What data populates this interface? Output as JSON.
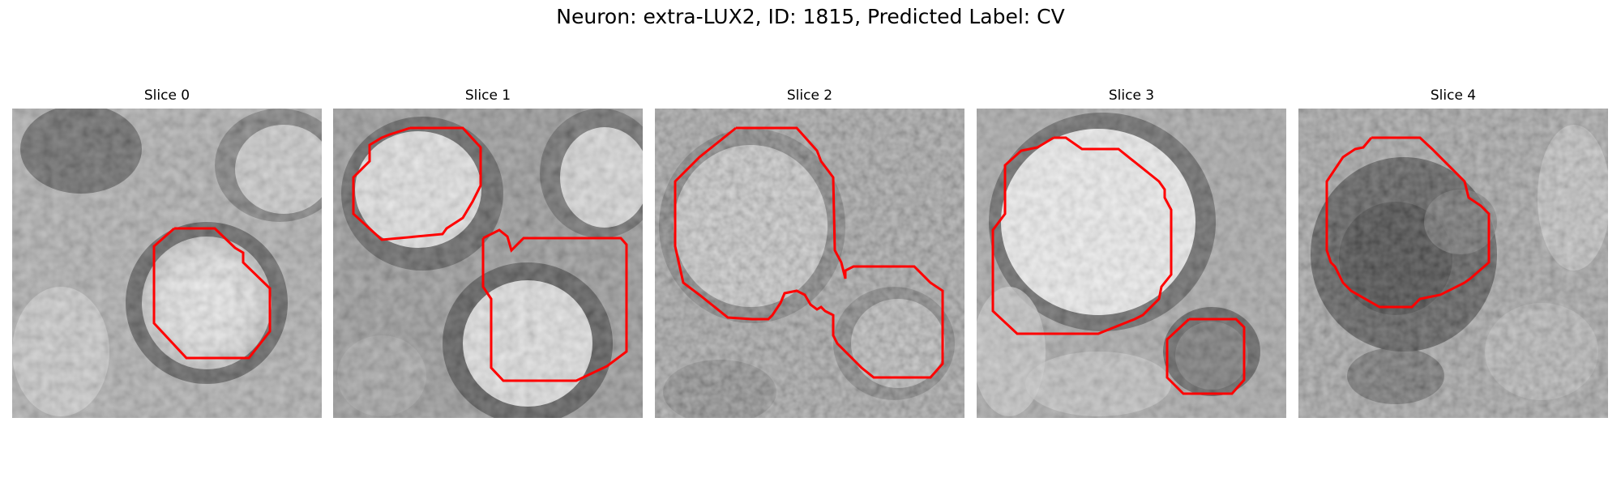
{
  "figure": {
    "title": "Neuron: extra-LUX2, ID: 1815, Predicted Label: CV"
  },
  "colors": {
    "contour": "#ff0000",
    "background": "#ffffff"
  },
  "slices": [
    {
      "label": "Slice 0"
    },
    {
      "label": "Slice 1"
    },
    {
      "label": "Slice 2"
    },
    {
      "label": "Slice 3"
    },
    {
      "label": "Slice 4"
    }
  ]
}
